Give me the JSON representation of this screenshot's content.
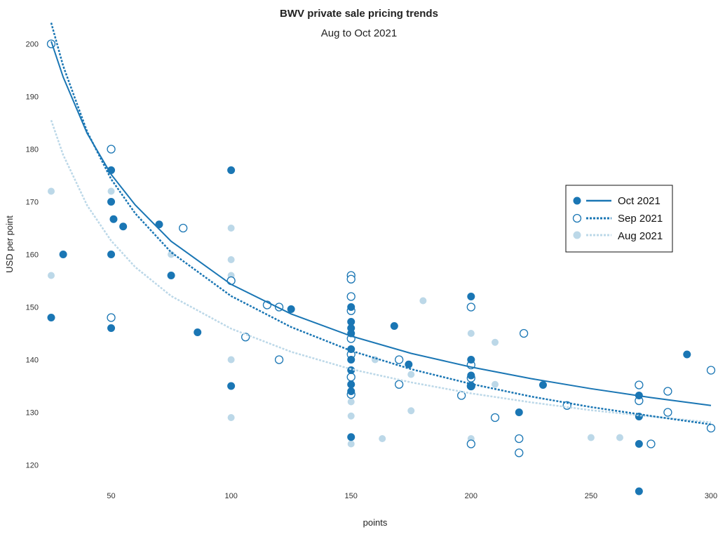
{
  "chart_data": {
    "type": "scatter",
    "title": "BWV private sale pricing trends",
    "subtitle": "Aug to Oct 2021",
    "xlabel": "points",
    "ylabel": "USD per point",
    "xlim": [
      25,
      300
    ],
    "ylim": [
      115,
      205
    ],
    "xticks": [
      50,
      100,
      150,
      200,
      250,
      300
    ],
    "yticks": [
      120,
      130,
      140,
      150,
      160,
      170,
      180,
      190,
      200
    ],
    "grid": false,
    "legend_position": "right",
    "colors": {
      "oct": "#1a76b4",
      "sep": "#1a76b4",
      "aug": "#bcd8e8"
    },
    "series": [
      {
        "name": "Oct 2021",
        "marker": "filled-circle",
        "line": "solid",
        "trend_points": [
          [
            25,
            200.5
          ],
          [
            30,
            193.7
          ],
          [
            40,
            183.0
          ],
          [
            50,
            175.2
          ],
          [
            60,
            169.4
          ],
          [
            75,
            162.5
          ],
          [
            100,
            154.3
          ],
          [
            125,
            148.7
          ],
          [
            150,
            144.5
          ],
          [
            175,
            141.2
          ],
          [
            200,
            138.6
          ],
          [
            225,
            136.4
          ],
          [
            250,
            134.5
          ],
          [
            275,
            132.8
          ],
          [
            300,
            131.3
          ]
        ],
        "points": [
          [
            25,
            148
          ],
          [
            30,
            160
          ],
          [
            50,
            176
          ],
          [
            50,
            170
          ],
          [
            51,
            166.7
          ],
          [
            55,
            165.3
          ],
          [
            50,
            160
          ],
          [
            50,
            146
          ],
          [
            70,
            165.7
          ],
          [
            75,
            156
          ],
          [
            86,
            145.2
          ],
          [
            100,
            176
          ],
          [
            100,
            135
          ],
          [
            125,
            149.6
          ],
          [
            150,
            150
          ],
          [
            150,
            147.2
          ],
          [
            150,
            146
          ],
          [
            150,
            145
          ],
          [
            150,
            142
          ],
          [
            150,
            140
          ],
          [
            150,
            138
          ],
          [
            150,
            135.3
          ],
          [
            150,
            134
          ],
          [
            150,
            125.3
          ],
          [
            168,
            146.4
          ],
          [
            174,
            139.1
          ],
          [
            200,
            152
          ],
          [
            200,
            140
          ],
          [
            200,
            137
          ],
          [
            200,
            135
          ],
          [
            220,
            130
          ],
          [
            230,
            135.2
          ],
          [
            270,
            133.2
          ],
          [
            270,
            129.2
          ],
          [
            270,
            124
          ],
          [
            270,
            115
          ],
          [
            290,
            141
          ]
        ]
      },
      {
        "name": "Sep 2021",
        "marker": "open-circle",
        "line": "dotted",
        "trend_points": [
          [
            25,
            204.0
          ],
          [
            30,
            195.8
          ],
          [
            40,
            183.3
          ],
          [
            50,
            174.3
          ],
          [
            60,
            167.8
          ],
          [
            75,
            160.4
          ],
          [
            100,
            152.1
          ],
          [
            125,
            146.2
          ],
          [
            150,
            141.7
          ],
          [
            175,
            138.2
          ],
          [
            200,
            135.4
          ],
          [
            225,
            133.0
          ],
          [
            250,
            131.0
          ],
          [
            275,
            129.3
          ],
          [
            300,
            127.7
          ]
        ],
        "points": [
          [
            25,
            200
          ],
          [
            50,
            180
          ],
          [
            50,
            148
          ],
          [
            80,
            165
          ],
          [
            100,
            155
          ],
          [
            106,
            144.3
          ],
          [
            115,
            150.4
          ],
          [
            120,
            150
          ],
          [
            120,
            140
          ],
          [
            150,
            156
          ],
          [
            150,
            155.3
          ],
          [
            150,
            152
          ],
          [
            150,
            149.3
          ],
          [
            150,
            144
          ],
          [
            150,
            141
          ],
          [
            150,
            136.7
          ],
          [
            150,
            133.4
          ],
          [
            170,
            140
          ],
          [
            170,
            135.3
          ],
          [
            196,
            133.2
          ],
          [
            200,
            150
          ],
          [
            200,
            139
          ],
          [
            200,
            136.5
          ],
          [
            200,
            135
          ],
          [
            200,
            124
          ],
          [
            210,
            129
          ],
          [
            220,
            125
          ],
          [
            220,
            122.3
          ],
          [
            222,
            145
          ],
          [
            240,
            131.3
          ],
          [
            270,
            135.2
          ],
          [
            270,
            132.2
          ],
          [
            275,
            124
          ],
          [
            282,
            134
          ],
          [
            282,
            130
          ],
          [
            300,
            138
          ],
          [
            300,
            127
          ]
        ]
      },
      {
        "name": "Aug 2021",
        "marker": "filled-circle-light",
        "line": "dotted",
        "trend_points": [
          [
            25,
            185.5
          ],
          [
            30,
            178.9
          ],
          [
            40,
            169.3
          ],
          [
            50,
            162.6
          ],
          [
            60,
            157.6
          ],
          [
            75,
            152.1
          ],
          [
            100,
            145.9
          ],
          [
            125,
            141.5
          ],
          [
            150,
            138.2
          ],
          [
            175,
            135.7
          ],
          [
            200,
            133.6
          ],
          [
            225,
            131.9
          ],
          [
            250,
            130.4
          ],
          [
            275,
            129.2
          ],
          [
            300,
            128.1
          ]
        ],
        "points": [
          [
            25,
            172
          ],
          [
            25,
            156
          ],
          [
            50,
            172
          ],
          [
            75,
            160
          ],
          [
            100,
            165
          ],
          [
            100,
            159
          ],
          [
            100,
            156
          ],
          [
            100,
            140
          ],
          [
            100,
            129
          ],
          [
            150,
            132
          ],
          [
            150,
            129.3
          ],
          [
            150,
            124
          ],
          [
            160,
            140
          ],
          [
            163,
            125
          ],
          [
            175,
            137.2
          ],
          [
            175,
            130.3
          ],
          [
            180,
            151.2
          ],
          [
            200,
            145
          ],
          [
            200,
            125
          ],
          [
            210,
            143.3
          ],
          [
            210,
            135.3
          ],
          [
            250,
            125.2
          ],
          [
            262,
            125.2
          ]
        ]
      }
    ]
  }
}
